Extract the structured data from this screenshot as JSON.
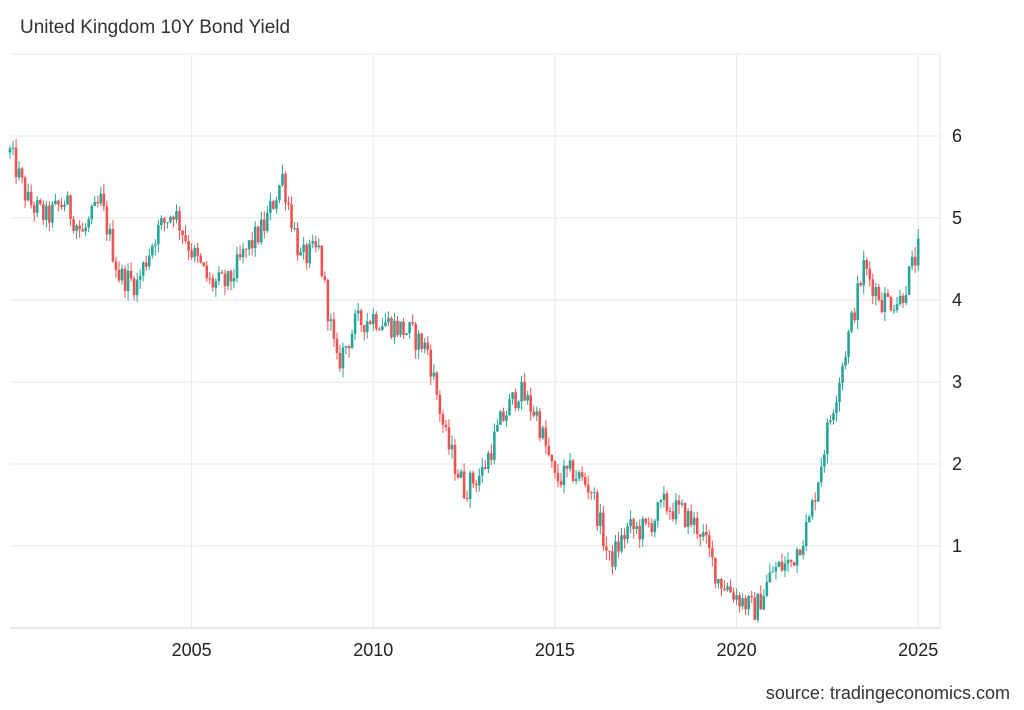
{
  "title": "United Kingdom 10Y Bond Yield",
  "source": "source: tradingeconomics.com",
  "colors": {
    "up": "#26a69a",
    "down": "#ef5350",
    "grid": "#e6e6e6"
  },
  "chart_data": {
    "type": "candlestick",
    "title": "United Kingdom 10Y Bond Yield",
    "xlabel": "",
    "ylabel": "",
    "x_ticks": [
      "2005",
      "2010",
      "2015",
      "2020",
      "2025"
    ],
    "y_ticks": [
      "1",
      "2",
      "3",
      "4",
      "5",
      "6"
    ],
    "xlim": [
      2000.0,
      2025.6
    ],
    "ylim": [
      0,
      7
    ],
    "grid": true,
    "legend": "none",
    "series": [
      {
        "x": [
          2000.0,
          2000.5,
          2001.0,
          2001.5,
          2002.0,
          2002.5,
          2003.0,
          2003.5,
          2004.0,
          2004.5,
          2005.0,
          2005.5,
          2006.0,
          2006.5,
          2007.0,
          2007.5,
          2008.0,
          2008.5,
          2009.0,
          2009.5,
          2010.0,
          2010.5,
          2011.0,
          2011.5,
          2012.0,
          2012.5,
          2013.0,
          2013.5,
          2014.0,
          2014.5,
          2015.0,
          2015.5,
          2016.0,
          2016.5,
          2017.0,
          2017.5,
          2018.0,
          2018.5,
          2019.0,
          2019.5,
          2020.0,
          2020.5,
          2021.0,
          2021.5,
          2022.0,
          2022.5,
          2023.0,
          2023.5,
          2024.0,
          2024.5,
          2025.0
        ],
        "y": [
          5.8,
          5.2,
          5.0,
          5.2,
          4.8,
          5.2,
          4.3,
          4.2,
          4.8,
          5.1,
          4.6,
          4.2,
          4.2,
          4.6,
          4.9,
          5.5,
          4.5,
          4.6,
          3.2,
          3.7,
          3.8,
          3.7,
          3.6,
          3.4,
          2.3,
          1.7,
          1.9,
          2.5,
          2.9,
          2.6,
          1.8,
          1.9,
          1.7,
          0.8,
          1.2,
          1.2,
          1.5,
          1.4,
          1.2,
          0.6,
          0.4,
          0.2,
          0.7,
          0.8,
          1.3,
          2.4,
          3.4,
          4.4,
          4.0,
          4.0,
          4.6
        ]
      }
    ]
  }
}
